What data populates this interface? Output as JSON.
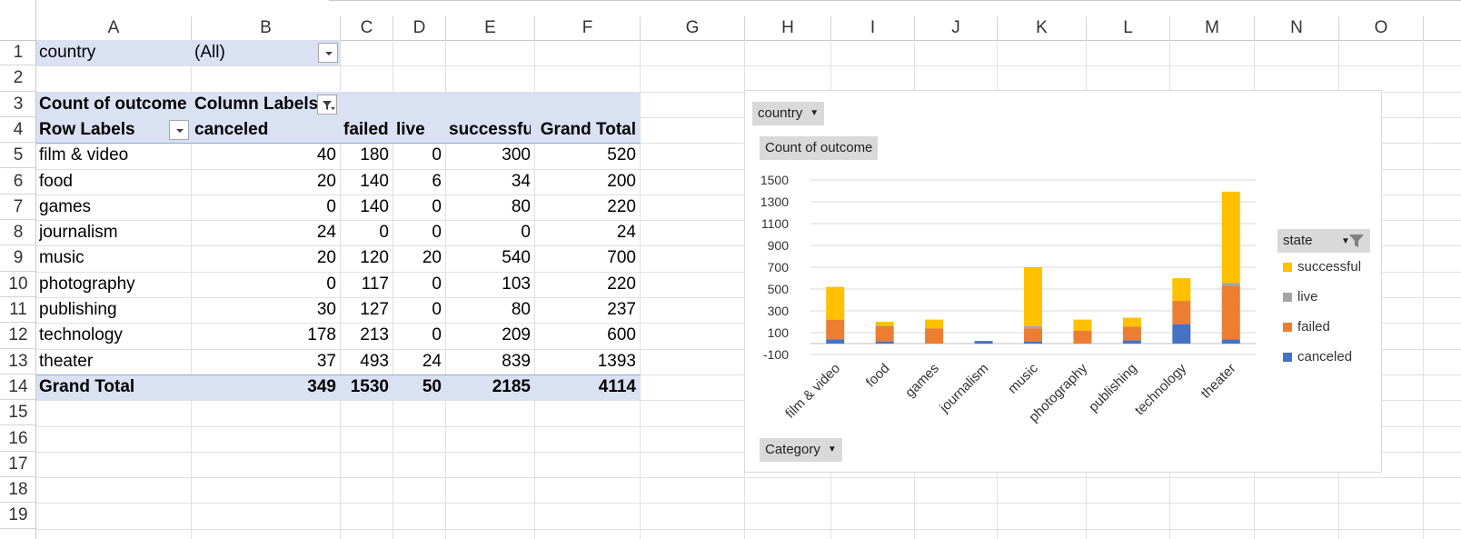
{
  "columns": [
    "A",
    "B",
    "C",
    "D",
    "E",
    "F",
    "G",
    "H",
    "I",
    "J",
    "K",
    "L",
    "M",
    "N",
    "O"
  ],
  "rows": [
    "1",
    "2",
    "3",
    "4",
    "5",
    "6",
    "7",
    "8",
    "9",
    "10",
    "11",
    "12",
    "13",
    "14",
    "15",
    "16",
    "17",
    "18",
    "19"
  ],
  "pivot": {
    "filter_label": "country",
    "filter_value": "(All)",
    "measure_label": "Count of outcome",
    "column_labels": "Column Labels",
    "row_labels": "Row Labels",
    "headers": [
      "canceled",
      "failed",
      "live",
      "successful",
      "Grand Total"
    ],
    "rows": [
      {
        "label": "film & video",
        "values": [
          "40",
          "180",
          "0",
          "300",
          "520"
        ]
      },
      {
        "label": "food",
        "values": [
          "20",
          "140",
          "6",
          "34",
          "200"
        ]
      },
      {
        "label": "games",
        "values": [
          "0",
          "140",
          "0",
          "80",
          "220"
        ]
      },
      {
        "label": "journalism",
        "values": [
          "24",
          "0",
          "0",
          "0",
          "24"
        ]
      },
      {
        "label": "music",
        "values": [
          "20",
          "120",
          "20",
          "540",
          "700"
        ]
      },
      {
        "label": "photography",
        "values": [
          "0",
          "117",
          "0",
          "103",
          "220"
        ]
      },
      {
        "label": "publishing",
        "values": [
          "30",
          "127",
          "0",
          "80",
          "237"
        ]
      },
      {
        "label": "technology",
        "values": [
          "178",
          "213",
          "0",
          "209",
          "600"
        ]
      },
      {
        "label": "theater",
        "values": [
          "37",
          "493",
          "24",
          "839",
          "1393"
        ]
      }
    ],
    "grand_total_label": "Grand Total",
    "grand_total_values": [
      "349",
      "1530",
      "50",
      "2185",
      "4114"
    ]
  },
  "chart": {
    "country_button": "country",
    "measure_button": "Count of outcome",
    "legend_title": "state",
    "category_button": "Category"
  },
  "chart_data": {
    "type": "bar",
    "stacked": true,
    "categories": [
      "film & video",
      "food",
      "games",
      "journalism",
      "music",
      "photography",
      "publishing",
      "technology",
      "theater"
    ],
    "series": [
      {
        "name": "canceled",
        "color": "#4472c4",
        "values": [
          40,
          20,
          0,
          24,
          20,
          0,
          30,
          178,
          37
        ]
      },
      {
        "name": "failed",
        "color": "#ed7d31",
        "values": [
          180,
          140,
          140,
          0,
          120,
          117,
          127,
          213,
          493
        ]
      },
      {
        "name": "live",
        "color": "#a5a5a5",
        "values": [
          0,
          6,
          0,
          0,
          20,
          0,
          0,
          0,
          24
        ]
      },
      {
        "name": "successful",
        "color": "#ffc000",
        "values": [
          300,
          34,
          80,
          0,
          540,
          103,
          80,
          209,
          839
        ]
      }
    ],
    "yticks": [
      -100,
      100,
      300,
      500,
      700,
      900,
      1100,
      1300,
      1500
    ],
    "ylim": [
      -100,
      1500
    ],
    "grid": true,
    "legend_position": "right",
    "legend_order": [
      "successful",
      "live",
      "failed",
      "canceled"
    ]
  }
}
